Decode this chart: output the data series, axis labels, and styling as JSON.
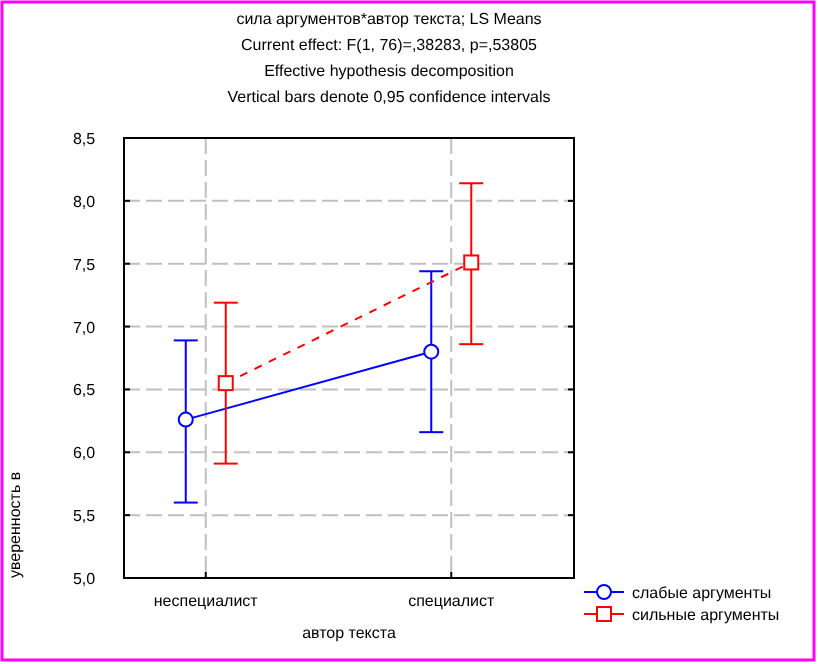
{
  "chart_data": {
    "type": "line",
    "title": "сила аргументов*автор текста; LS Means",
    "subtitle": "Current effect: F(1, 76)=,38283, p=,53805",
    "annotations": [
      "Effective hypothesis decomposition",
      "Vertical bars denote 0,95 confidence intervals"
    ],
    "xlabel": "автор текста",
    "ylabel": "уверенность в",
    "categories": [
      "неспециалист",
      "специалист"
    ],
    "series": [
      {
        "name": "слабые аргументы",
        "color": "#0000ff",
        "values": [
          6.26,
          6.8
        ],
        "errors": [
          [
            5.6,
            6.89
          ],
          [
            6.16,
            7.44
          ]
        ],
        "marker": "circle",
        "line_style": "solid"
      },
      {
        "name": "сильные аргументы",
        "color": "#ff0000",
        "values": [
          6.55,
          7.51
        ],
        "errors": [
          [
            5.91,
            7.19
          ],
          [
            6.86,
            8.14
          ]
        ],
        "marker": "square",
        "line_style": "dashed"
      }
    ],
    "ylim": [
      5,
      8.5
    ],
    "yticks": [
      {
        "value": 5,
        "label": "5,0"
      },
      {
        "value": 5.5,
        "label": "5,5"
      },
      {
        "value": 6,
        "label": "6,0"
      },
      {
        "value": 6.5,
        "label": "6,5"
      },
      {
        "value": 7,
        "label": "7,0"
      },
      {
        "value": 7.5,
        "label": "7,5"
      },
      {
        "value": 8,
        "label": "8,0"
      },
      {
        "value": 8.5,
        "label": "8,5"
      }
    ],
    "grid": true,
    "legend": "bottom right"
  }
}
